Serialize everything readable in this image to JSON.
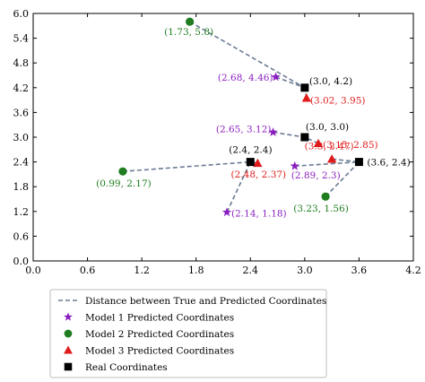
{
  "chart_data": {
    "type": "scatter",
    "title": "",
    "xlabel": "",
    "ylabel": "",
    "xlim": [
      0.0,
      4.2
    ],
    "ylim": [
      0.0,
      6.0
    ],
    "x_ticks": [
      "0.0",
      "0.6",
      "1.2",
      "1.8",
      "2.4",
      "3.0",
      "3.6",
      "4.2"
    ],
    "y_ticks": [
      "0.0",
      "0.6",
      "1.2",
      "1.8",
      "2.4",
      "3.0",
      "3.6",
      "4.2",
      "4.8",
      "5.4",
      "6.0"
    ],
    "grid": false,
    "legend_placement": "below",
    "colors": {
      "distance": "#6b7b94",
      "model1": "#8a1fbf",
      "model2": "#1f7d1f",
      "model3": "#e01b1b",
      "real": "#000000"
    },
    "series": [
      {
        "name": "Real Coordinates",
        "marker": "square",
        "points": [
          {
            "x": 3.0,
            "y": 4.2,
            "label": "(3.0, 4.2)"
          },
          {
            "x": 3.0,
            "y": 3.0,
            "label": "(3.0, 3.0)"
          },
          {
            "x": 2.4,
            "y": 2.4,
            "label": "(2.4, 2.4)"
          },
          {
            "x": 3.6,
            "y": 2.4,
            "label": "(3.6, 2.4)"
          }
        ]
      },
      {
        "name": "Model 1 Predicted Coordinates",
        "marker": "star",
        "points": [
          {
            "x": 2.68,
            "y": 4.46,
            "label": "(2.68, 4.46)"
          },
          {
            "x": 2.65,
            "y": 3.12,
            "label": "(2.65, 3.12)"
          },
          {
            "x": 2.89,
            "y": 2.3,
            "label": "(2.89, 2.3)"
          },
          {
            "x": 2.14,
            "y": 1.18,
            "label": "(2.14, 1.18)"
          }
        ]
      },
      {
        "name": "Model 2 Predicted Coordinates",
        "marker": "circle",
        "points": [
          {
            "x": 1.73,
            "y": 5.8,
            "label": "(1.73, 5.8)"
          },
          {
            "x": 0.99,
            "y": 2.17,
            "label": "(0.99, 2.17)"
          },
          {
            "x": 3.23,
            "y": 1.56,
            "label": "(3.23, 1.56)"
          }
        ]
      },
      {
        "name": "Model 3 Predicted Coordinates",
        "marker": "triangle",
        "points": [
          {
            "x": 3.02,
            "y": 3.95,
            "label": "(3.02, 3.95)"
          },
          {
            "x": 3.15,
            "y": 2.85,
            "label": "(3.15, 2.85)"
          },
          {
            "x": 3.3,
            "y": 2.47,
            "label": "(3.3, 2.47)"
          },
          {
            "x": 2.48,
            "y": 2.37,
            "label": "(2.48, 2.37)"
          }
        ]
      }
    ],
    "distance_lines": {
      "name": "Distance between True and Predicted Coordinates",
      "segments": [
        [
          [
            1.73,
            5.8
          ],
          [
            3.0,
            4.2
          ]
        ],
        [
          [
            2.68,
            4.46
          ],
          [
            3.0,
            4.2
          ]
        ],
        [
          [
            3.02,
            3.95
          ],
          [
            3.0,
            4.2
          ]
        ],
        [
          [
            2.65,
            3.12
          ],
          [
            3.0,
            3.0
          ]
        ],
        [
          [
            3.15,
            2.85
          ],
          [
            3.0,
            3.0
          ]
        ],
        [
          [
            0.99,
            2.17
          ],
          [
            2.4,
            2.4
          ]
        ],
        [
          [
            2.14,
            1.18
          ],
          [
            2.4,
            2.4
          ]
        ],
        [
          [
            2.48,
            2.37
          ],
          [
            2.4,
            2.4
          ]
        ],
        [
          [
            2.89,
            2.3
          ],
          [
            3.6,
            2.4
          ]
        ],
        [
          [
            3.3,
            2.47
          ],
          [
            3.6,
            2.4
          ]
        ],
        [
          [
            3.23,
            1.56
          ],
          [
            3.6,
            2.4
          ]
        ]
      ]
    },
    "legend": [
      {
        "kind": "dashed-line",
        "color_key": "distance",
        "label": "Distance between True and Predicted Coordinates"
      },
      {
        "kind": "star",
        "color_key": "model1",
        "label": "Model 1 Predicted Coordinates"
      },
      {
        "kind": "circle",
        "color_key": "model2",
        "label": "Model 2 Predicted Coordinates"
      },
      {
        "kind": "triangle",
        "color_key": "model3",
        "label": "Model 3 Predicted Coordinates"
      },
      {
        "kind": "square",
        "color_key": "real",
        "label": "Real Coordinates"
      }
    ]
  }
}
